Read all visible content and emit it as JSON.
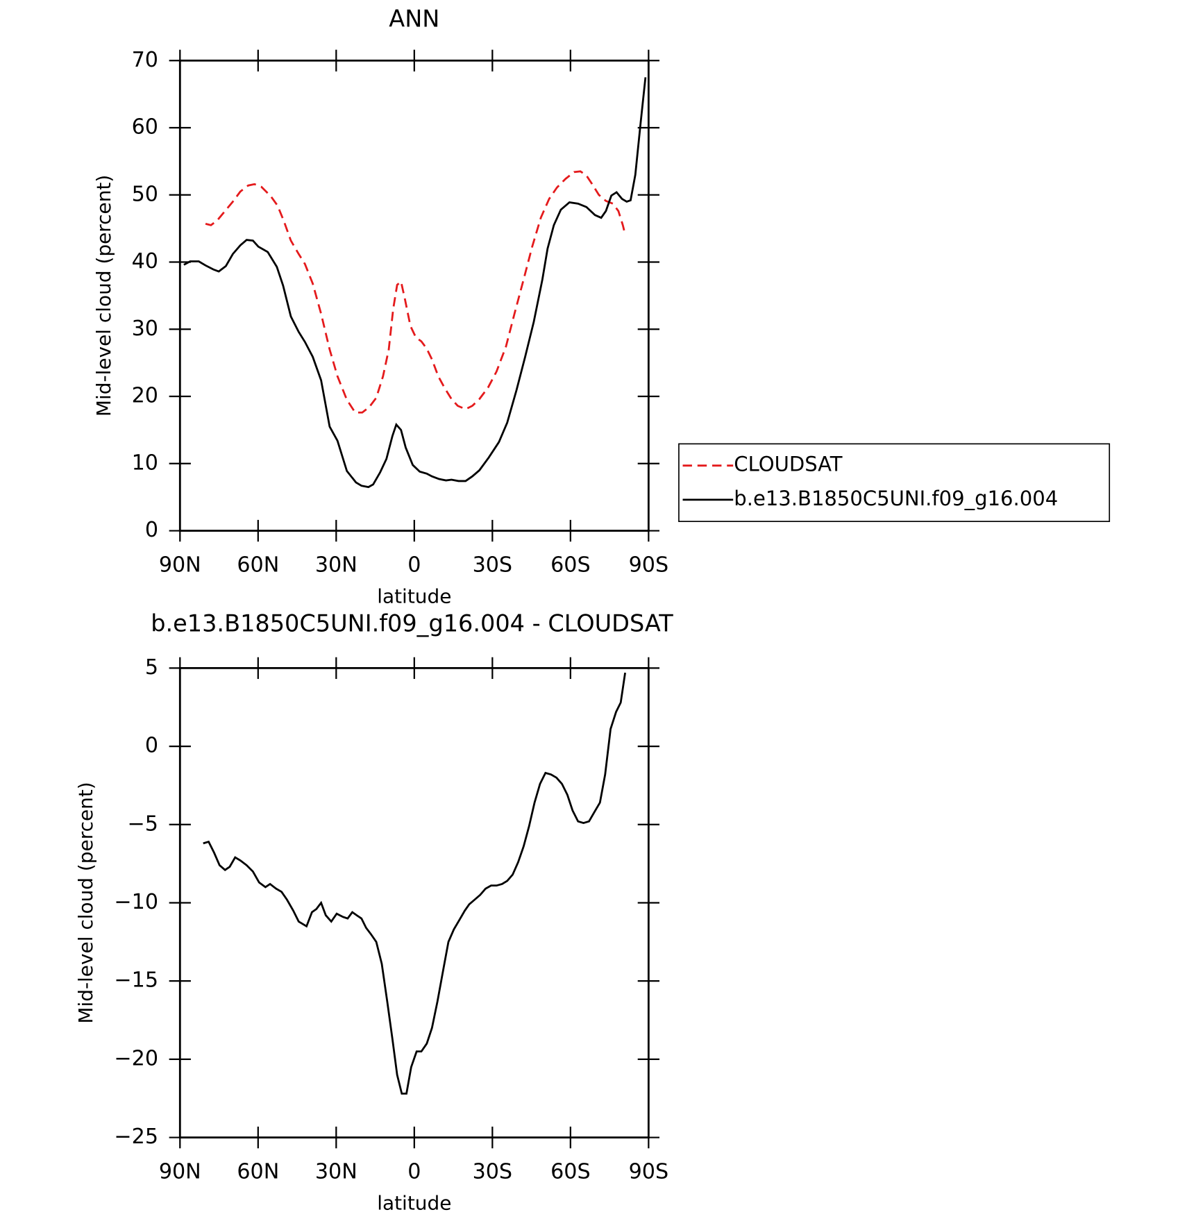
{
  "chart_data": [
    {
      "type": "line",
      "title": "ANN",
      "xlabel": "latitude",
      "ylabel": "Mid-level cloud (percent)",
      "xlim": [
        90,
        -90
      ],
      "xticks": [
        {
          "value": 90,
          "label": "90N"
        },
        {
          "value": 60,
          "label": "60N"
        },
        {
          "value": 30,
          "label": "30N"
        },
        0,
        {
          "value": -30,
          "label": "30S"
        },
        {
          "value": -60,
          "label": "60S"
        },
        {
          "value": -90,
          "label": "90S"
        }
      ],
      "ylim": [
        0,
        70
      ],
      "yticks": [
        0,
        10,
        20,
        30,
        40,
        50,
        60,
        70
      ],
      "legend": "right",
      "series": [
        {
          "name": "CLOUDSAT",
          "color": "#e41a1c",
          "linestyle": "dashed",
          "x": [
            80.2,
            78.1,
            75.7,
            72.7,
            69.7,
            66.8,
            63.8,
            61.4,
            58.7,
            55.1,
            52.5,
            50.1,
            47.4,
            44.4,
            42.0,
            39.0,
            35.8,
            32.5,
            29.5,
            25.9,
            22.7,
            20.0,
            17.3,
            14.6,
            12.0,
            9.8,
            8.1,
            6.6,
            5.1,
            3.6,
            1.5,
            -0.6,
            -2.7,
            -4.8,
            -6.8,
            -9.2,
            -11.6,
            -14.3,
            -16.7,
            -19.7,
            -22.3,
            -25.0,
            -28.3,
            -31.6,
            -35.2,
            -38.4,
            -42.0,
            -45.3,
            -48.6,
            -51.8,
            -54.8,
            -58.1,
            -61.4,
            -63.8,
            -66.1,
            -68.5,
            -70.9,
            -73.6,
            -76.3,
            -78.4,
            -80.1,
            -81.0
          ],
          "values": [
            45.7,
            45.5,
            46.2,
            47.6,
            49.0,
            50.5,
            51.4,
            51.6,
            51.2,
            49.8,
            48.4,
            46.1,
            43.2,
            41.2,
            39.7,
            36.8,
            32.3,
            27.0,
            23.0,
            19.5,
            17.6,
            17.6,
            18.4,
            19.8,
            23.0,
            27.0,
            33.0,
            36.6,
            37.1,
            34.5,
            30.5,
            28.8,
            28.2,
            27.1,
            25.5,
            23.0,
            21.3,
            19.6,
            18.6,
            18.1,
            18.6,
            19.6,
            21.3,
            23.7,
            27.4,
            32.2,
            37.4,
            42.3,
            46.6,
            49.4,
            51.1,
            52.4,
            53.4,
            53.5,
            52.9,
            51.5,
            50.0,
            49.1,
            48.7,
            47.6,
            45.5,
            44.1
          ]
        },
        {
          "name": "b.e13.B1850C5UNI.f09_g16.004",
          "color": "#000000",
          "linestyle": "solid",
          "x": [
            88.5,
            86.1,
            82.8,
            80.2,
            77.2,
            75.1,
            72.4,
            69.7,
            66.8,
            64.4,
            62.0,
            59.9,
            56.3,
            52.8,
            50.4,
            47.4,
            44.4,
            42.0,
            39.0,
            35.8,
            32.5,
            29.5,
            25.9,
            22.4,
            20.3,
            17.6,
            15.8,
            13.1,
            10.7,
            8.4,
            6.9,
            5.1,
            3.3,
            0.6,
            -2.1,
            -4.8,
            -6.8,
            -9.5,
            -12.2,
            -14.3,
            -17.0,
            -19.7,
            -22.3,
            -25.0,
            -28.6,
            -32.5,
            -35.7,
            -39.3,
            -42.6,
            -45.9,
            -49.2,
            -51.2,
            -53.6,
            -56.3,
            -59.6,
            -62.9,
            -66.1,
            -69.4,
            -71.8,
            -73.6,
            -75.7,
            -77.7,
            -79.8,
            -81.6,
            -83.1,
            -84.9,
            -87.0,
            -88.8
          ],
          "values": [
            39.6,
            40.1,
            40.1,
            39.5,
            38.9,
            38.6,
            39.4,
            41.2,
            42.5,
            43.3,
            43.2,
            42.3,
            41.5,
            39.3,
            36.5,
            31.9,
            29.6,
            28.1,
            25.9,
            22.4,
            15.5,
            13.4,
            8.9,
            7.2,
            6.7,
            6.5,
            6.9,
            8.7,
            10.7,
            14.1,
            15.8,
            15.0,
            12.4,
            9.8,
            8.8,
            8.5,
            8.1,
            7.7,
            7.5,
            7.6,
            7.4,
            7.4,
            8.1,
            9.0,
            10.9,
            13.2,
            16.1,
            21.0,
            25.9,
            31.1,
            37.4,
            42.0,
            45.5,
            47.8,
            48.9,
            48.7,
            48.2,
            47.0,
            46.6,
            47.6,
            49.9,
            50.4,
            49.4,
            49.0,
            49.2,
            53.0,
            60.9,
            67.5
          ]
        }
      ]
    },
    {
      "type": "line",
      "title": "b.e13.B1850C5UNI.f09_g16.004 - CLOUDSAT",
      "xlabel": "latitude",
      "ylabel": "Mid-level cloud (percent)",
      "xlim": [
        90,
        -90
      ],
      "xticks": [
        {
          "value": 90,
          "label": "90N"
        },
        {
          "value": 60,
          "label": "60N"
        },
        {
          "value": 30,
          "label": "30N"
        },
        0,
        {
          "value": -30,
          "label": "30S"
        },
        {
          "value": -60,
          "label": "60S"
        },
        {
          "value": -90,
          "label": "90S"
        }
      ],
      "ylim": [
        -25,
        5
      ],
      "yticks": [
        {
          "value": -25,
          "label": "−25"
        },
        {
          "value": -20,
          "label": "−20"
        },
        {
          "value": -15,
          "label": "−15"
        },
        {
          "value": -10,
          "label": "−10"
        },
        {
          "value": -5,
          "label": "−5"
        },
        0,
        5
      ],
      "series": [
        {
          "color": "#000000",
          "linestyle": "solid",
          "x": [
            81.1,
            79.0,
            76.9,
            74.8,
            72.7,
            70.9,
            68.8,
            66.8,
            64.4,
            62.0,
            59.6,
            57.2,
            55.4,
            53.1,
            51.0,
            48.9,
            46.5,
            44.4,
            41.4,
            39.3,
            37.6,
            35.8,
            34.0,
            31.9,
            29.8,
            27.4,
            25.6,
            23.8,
            22.1,
            20.3,
            18.5,
            16.7,
            14.6,
            12.5,
            10.4,
            8.4,
            6.6,
            4.8,
            3.0,
            1.2,
            -0.9,
            -2.7,
            -4.8,
            -6.8,
            -8.9,
            -11.0,
            -13.1,
            -15.2,
            -17.3,
            -19.4,
            -21.1,
            -23.2,
            -25.3,
            -27.4,
            -29.5,
            -31.6,
            -33.7,
            -35.7,
            -37.8,
            -39.9,
            -42.0,
            -44.1,
            -46.2,
            -48.3,
            -50.4,
            -52.5,
            -54.6,
            -56.7,
            -58.8,
            -60.8,
            -62.9,
            -65.0,
            -67.1,
            -69.2,
            -71.3,
            -73.3,
            -75.4,
            -77.5,
            -79.3,
            -81.0
          ],
          "values": [
            -6.2,
            -6.1,
            -6.8,
            -7.6,
            -7.9,
            -7.7,
            -7.1,
            -7.3,
            -7.6,
            -8.0,
            -8.7,
            -9.0,
            -8.8,
            -9.1,
            -9.3,
            -9.8,
            -10.5,
            -11.2,
            -11.5,
            -10.6,
            -10.4,
            -10.0,
            -10.8,
            -11.2,
            -10.7,
            -10.9,
            -11.0,
            -10.6,
            -10.8,
            -11.0,
            -11.6,
            -12.0,
            -12.5,
            -13.9,
            -16.3,
            -18.7,
            -21.0,
            -22.2,
            -22.2,
            -20.5,
            -19.5,
            -19.5,
            -19.0,
            -18.0,
            -16.3,
            -14.4,
            -12.5,
            -11.7,
            -11.1,
            -10.5,
            -10.1,
            -9.8,
            -9.5,
            -9.1,
            -8.9,
            -8.9,
            -8.8,
            -8.6,
            -8.2,
            -7.4,
            -6.4,
            -5.1,
            -3.6,
            -2.4,
            -1.7,
            -1.8,
            -2.0,
            -2.4,
            -3.1,
            -4.1,
            -4.8,
            -4.9,
            -4.8,
            -4.2,
            -3.6,
            -1.8,
            1.1,
            2.2,
            2.8,
            4.7
          ]
        }
      ]
    }
  ]
}
